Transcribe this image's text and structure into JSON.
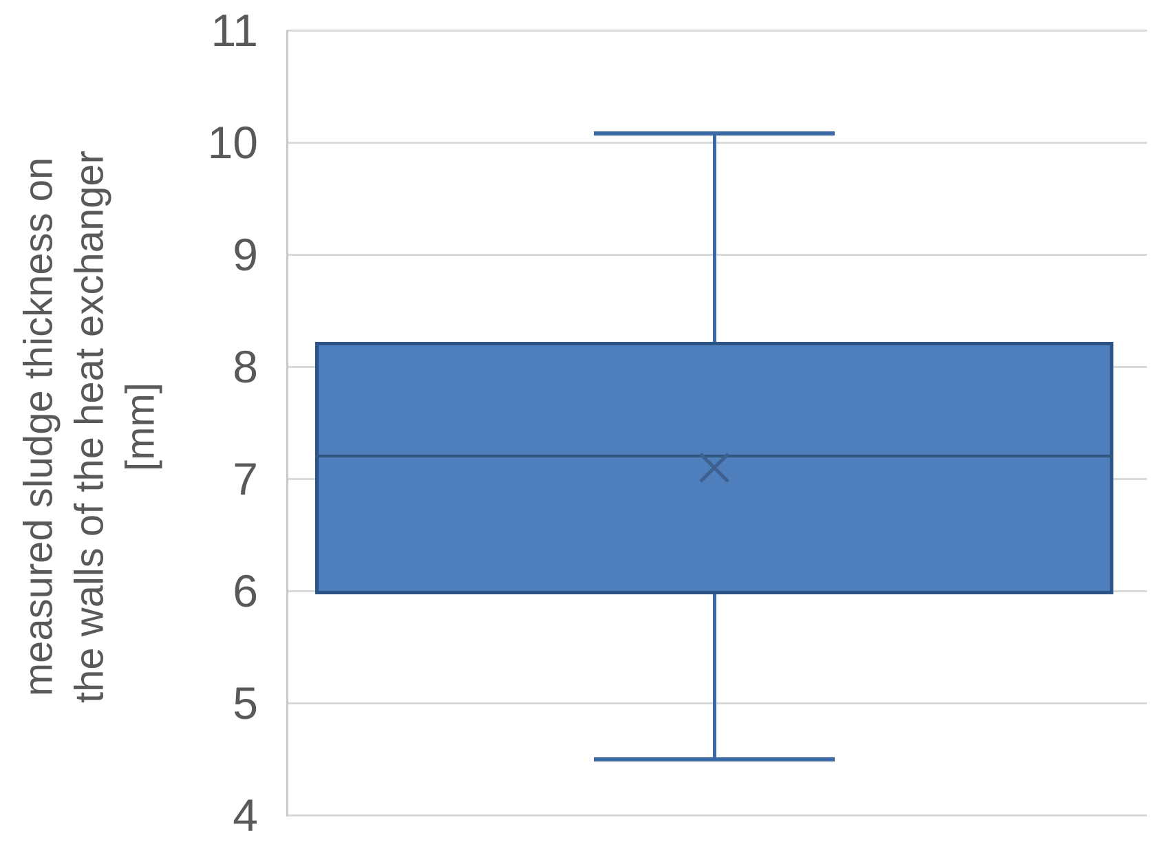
{
  "chart_data": {
    "type": "box",
    "title": "",
    "ylabel_lines": [
      "measured sludge thickness on",
      "the walls of the heat exchanger",
      "[mm]"
    ],
    "xlabel": "",
    "ylim": [
      4,
      11
    ],
    "yticks": [
      11,
      10,
      9,
      8,
      7,
      6,
      5,
      4
    ],
    "grid": "horizontal gridlines on, no vertical gridlines, no legend, no category axis labels",
    "series": [
      {
        "name": "measured sludge thickness",
        "whisker_min": 4.5,
        "q1": 5.97,
        "median": 7.2,
        "mean": 7.1,
        "q3": 8.22,
        "whisker_max": 10.08
      }
    ]
  },
  "colors": {
    "box_fill": "#4E7EBC",
    "box_border": "#2C5385",
    "median_line": "#31567F",
    "whisker": "#3A69A5",
    "mean_marker": "#3D6091",
    "gridline": "#D9D9D9",
    "axis_line": "#C9C9C9",
    "text": "#595959",
    "background": "#FFFFFF"
  }
}
